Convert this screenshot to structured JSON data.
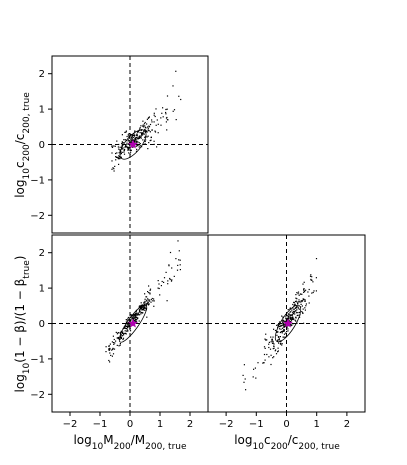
{
  "chart_data": [
    {
      "type": "scatter",
      "panel": "top-left",
      "xlabel": "",
      "ylabel": "log10 c200 / c200,true",
      "xlim": [
        -2.6,
        2.6
      ],
      "ylim": [
        -2.5,
        2.5
      ],
      "xticks": [],
      "yticks": [
        -2,
        -1,
        0,
        1,
        2
      ],
      "grid": false,
      "reference_lines": {
        "x": 0,
        "y": 0,
        "style": "dashed"
      },
      "marker_point": {
        "x": 0.1,
        "y": 0.0,
        "color": "#b000b0"
      },
      "contour": {
        "center": [
          0.1,
          0.0
        ],
        "rx": 0.6,
        "ry": 0.22,
        "angle_deg": 50
      },
      "trend": {
        "x_range": [
          -0.6,
          1.7
        ],
        "slope": 0.62,
        "intercept": 0.05,
        "spread": 0.35
      },
      "series": [
        {
          "values": []
        }
      ]
    },
    {
      "type": "scatter",
      "panel": "bottom-left",
      "xlabel": "log10 M200 / M200,true",
      "ylabel": "log10 (1 − β) / (1 − βtrue)",
      "xlim": [
        -2.6,
        2.6
      ],
      "ylim": [
        -2.5,
        2.5
      ],
      "xticks": [
        -2,
        -1,
        0,
        1,
        2
      ],
      "yticks": [
        -2,
        -1,
        0,
        1,
        2
      ],
      "grid": false,
      "reference_lines": {
        "x": 0,
        "y": 0,
        "style": "dashed"
      },
      "marker_point": {
        "x": 0.1,
        "y": 0.0,
        "color": "#b000b0"
      },
      "contour": {
        "center": [
          0.1,
          0.0
        ],
        "rx": 0.75,
        "ry": 0.16,
        "angle_deg": 55
      },
      "trend": {
        "x_range": [
          -0.8,
          1.7
        ],
        "slope": 1.05,
        "intercept": 0.0,
        "spread": 0.25
      },
      "series": [
        {
          "values": []
        }
      ]
    },
    {
      "type": "scatter",
      "panel": "bottom-right",
      "xlabel": "log10 c200 / c200,true",
      "ylabel": "",
      "xlim": [
        -2.6,
        2.6
      ],
      "ylim": [
        -2.5,
        2.5
      ],
      "xticks": [
        -2,
        -1,
        0,
        1,
        2
      ],
      "yticks": [],
      "grid": false,
      "reference_lines": {
        "x": 0,
        "y": 0,
        "style": "dashed"
      },
      "marker_point": {
        "x": 0.05,
        "y": 0.0,
        "color": "#b000b0"
      },
      "contour": {
        "center": [
          0.05,
          0.0
        ],
        "rx": 0.7,
        "ry": 0.2,
        "angle_deg": 58
      },
      "trend": {
        "x_range": [
          -1.5,
          1.0
        ],
        "slope": 1.3,
        "intercept": 0.0,
        "spread": 0.4
      },
      "series": [
        {
          "values": []
        }
      ]
    }
  ],
  "colors": {
    "points": "#000000",
    "marker": "#b000b0",
    "lines": "#000000"
  }
}
